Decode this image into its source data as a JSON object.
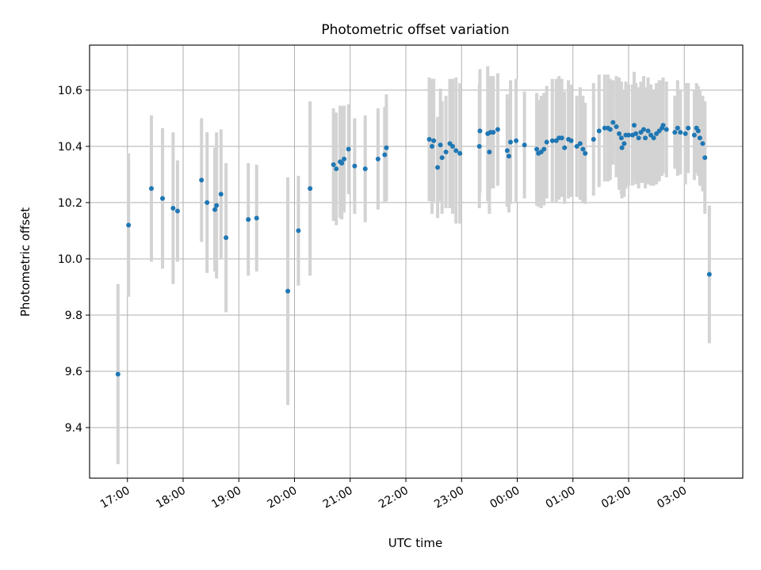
{
  "chart_data": {
    "type": "scatter",
    "title": "Photometric offset variation",
    "xlabel": "UTC time",
    "ylabel": "Photometric offset",
    "x_unit": "hours since 17:00 UTC",
    "xlim": [
      -0.68,
      11.05
    ],
    "ylim": [
      9.22,
      10.76
    ],
    "grid": true,
    "xticks": [
      0,
      1,
      2,
      3,
      4,
      5,
      6,
      7,
      8,
      9,
      10
    ],
    "xtick_labels": [
      "17:00",
      "18:00",
      "19:00",
      "20:00",
      "21:00",
      "22:00",
      "23:00",
      "00:00",
      "01:00",
      "02:00",
      "03:00"
    ],
    "yticks": [
      9.4,
      9.6,
      9.8,
      10.0,
      10.2,
      10.4,
      10.6
    ],
    "ytick_labels": [
      "9.4",
      "9.6",
      "9.8",
      "10.0",
      "10.2",
      "10.4",
      "10.6"
    ],
    "series": [
      {
        "name": "Photometric offset",
        "color": "#1f77b4",
        "errorbar_color": "#d3d3d3",
        "points": [
          [
            -0.17,
            9.59,
            0.32
          ],
          [
            0.02,
            10.12,
            0.255
          ],
          [
            0.43,
            10.25,
            0.26
          ],
          [
            0.63,
            10.215,
            0.25
          ],
          [
            0.82,
            10.18,
            0.27
          ],
          [
            0.9,
            10.17,
            0.18
          ],
          [
            1.33,
            10.28,
            0.22
          ],
          [
            1.43,
            10.2,
            0.25
          ],
          [
            1.57,
            10.175,
            0.22
          ],
          [
            1.6,
            10.19,
            0.26
          ],
          [
            1.68,
            10.23,
            0.23
          ],
          [
            1.77,
            10.075,
            0.265
          ],
          [
            2.17,
            10.14,
            0.2
          ],
          [
            2.32,
            10.145,
            0.19
          ],
          [
            2.88,
            9.885,
            0.405
          ],
          [
            3.07,
            10.1,
            0.195
          ],
          [
            3.28,
            10.25,
            0.31
          ],
          [
            3.7,
            10.335,
            0.2
          ],
          [
            3.75,
            10.32,
            0.2
          ],
          [
            3.82,
            10.345,
            0.2
          ],
          [
            3.85,
            10.34,
            0.2
          ],
          [
            3.89,
            10.355,
            0.19
          ],
          [
            3.97,
            10.39,
            0.16
          ],
          [
            4.08,
            10.33,
            0.17
          ],
          [
            4.27,
            10.32,
            0.19
          ],
          [
            4.5,
            10.355,
            0.18
          ],
          [
            4.62,
            10.37,
            0.17
          ],
          [
            4.65,
            10.395,
            0.19
          ],
          [
            5.42,
            10.425,
            0.22
          ],
          [
            5.47,
            10.4,
            0.24
          ],
          [
            5.5,
            10.42,
            0.22
          ],
          [
            5.57,
            10.325,
            0.18
          ],
          [
            5.62,
            10.405,
            0.2
          ],
          [
            5.65,
            10.36,
            0.2
          ],
          [
            5.72,
            10.38,
            0.2
          ],
          [
            5.79,
            10.41,
            0.23
          ],
          [
            5.84,
            10.4,
            0.24
          ],
          [
            5.9,
            10.385,
            0.26
          ],
          [
            5.97,
            10.375,
            0.25
          ],
          [
            6.32,
            10.4,
            0.22
          ],
          [
            6.33,
            10.455,
            0.22
          ],
          [
            6.47,
            10.445,
            0.24
          ],
          [
            6.5,
            10.38,
            0.22
          ],
          [
            6.52,
            10.45,
            0.2
          ],
          [
            6.57,
            10.45,
            0.2
          ],
          [
            6.65,
            10.46,
            0.2
          ],
          [
            6.82,
            10.385,
            0.2
          ],
          [
            6.85,
            10.365,
            0.2
          ],
          [
            6.88,
            10.415,
            0.22
          ],
          [
            6.98,
            10.42,
            0.22
          ],
          [
            7.13,
            10.405,
            0.19
          ],
          [
            7.35,
            10.39,
            0.2
          ],
          [
            7.38,
            10.375,
            0.19
          ],
          [
            7.43,
            10.38,
            0.2
          ],
          [
            7.48,
            10.39,
            0.2
          ],
          [
            7.53,
            10.415,
            0.2
          ],
          [
            7.63,
            10.42,
            0.22
          ],
          [
            7.7,
            10.42,
            0.22
          ],
          [
            7.75,
            10.43,
            0.22
          ],
          [
            7.8,
            10.43,
            0.21
          ],
          [
            7.85,
            10.395,
            0.2
          ],
          [
            7.92,
            10.425,
            0.21
          ],
          [
            7.97,
            10.42,
            0.2
          ],
          [
            8.07,
            10.4,
            0.18
          ],
          [
            8.13,
            10.41,
            0.2
          ],
          [
            8.18,
            10.39,
            0.19
          ],
          [
            8.22,
            10.375,
            0.18
          ],
          [
            8.37,
            10.425,
            0.2
          ],
          [
            8.47,
            10.455,
            0.2
          ],
          [
            8.57,
            10.465,
            0.19
          ],
          [
            8.63,
            10.465,
            0.19
          ],
          [
            8.67,
            10.46,
            0.18
          ],
          [
            8.72,
            10.485,
            0.15
          ],
          [
            8.78,
            10.47,
            0.18
          ],
          [
            8.83,
            10.445,
            0.2
          ],
          [
            8.87,
            10.43,
            0.2
          ],
          [
            8.88,
            10.395,
            0.18
          ],
          [
            8.92,
            10.41,
            0.19
          ],
          [
            8.95,
            10.44,
            0.19
          ],
          [
            9.0,
            10.44,
            0.18
          ],
          [
            9.07,
            10.44,
            0.18
          ],
          [
            9.1,
            10.475,
            0.19
          ],
          [
            9.13,
            10.445,
            0.18
          ],
          [
            9.18,
            10.43,
            0.18
          ],
          [
            9.22,
            10.45,
            0.18
          ],
          [
            9.27,
            10.46,
            0.19
          ],
          [
            9.3,
            10.43,
            0.18
          ],
          [
            9.35,
            10.455,
            0.19
          ],
          [
            9.4,
            10.44,
            0.18
          ],
          [
            9.45,
            10.43,
            0.17
          ],
          [
            9.5,
            10.445,
            0.18
          ],
          [
            9.55,
            10.455,
            0.18
          ],
          [
            9.6,
            10.465,
            0.17
          ],
          [
            9.62,
            10.475,
            0.17
          ],
          [
            9.68,
            10.46,
            0.17
          ],
          [
            9.83,
            10.45,
            0.13
          ],
          [
            9.88,
            10.465,
            0.17
          ],
          [
            9.93,
            10.45,
            0.15
          ],
          [
            10.02,
            10.445,
            0.18
          ],
          [
            10.07,
            10.465,
            0.16
          ],
          [
            10.18,
            10.44,
            0.16
          ],
          [
            10.22,
            10.465,
            0.16
          ],
          [
            10.25,
            10.455,
            0.16
          ],
          [
            10.28,
            10.43,
            0.17
          ],
          [
            10.33,
            10.41,
            0.17
          ],
          [
            10.37,
            10.36,
            0.2
          ],
          [
            10.45,
            9.945,
            0.245
          ]
        ]
      }
    ]
  }
}
